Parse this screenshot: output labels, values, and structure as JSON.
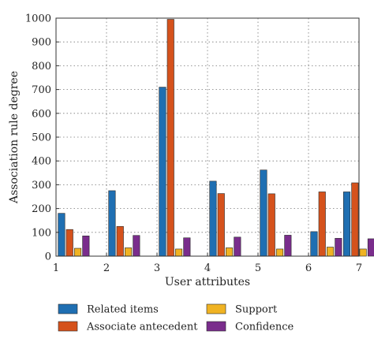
{
  "chart_data": {
    "type": "bar",
    "title": "",
    "xlabel": "User attributes",
    "ylabel": "Association rule degree",
    "categories": [
      1.35,
      2.35,
      3.35,
      4.35,
      5.35,
      6.35,
      7.0
    ],
    "x_ticks": [
      "1",
      "2",
      "3",
      "4",
      "5",
      "6",
      "7"
    ],
    "xlim": [
      1,
      7
    ],
    "ylim": [
      0,
      1000
    ],
    "y_ticks": [
      "0",
      "100",
      "200",
      "300",
      "400",
      "500",
      "600",
      "700",
      "800",
      "900",
      "1000"
    ],
    "grid": true,
    "legend_position": "bottom",
    "series": [
      {
        "name": "Related items",
        "color": "#1f6fb2",
        "values": [
          180,
          275,
          710,
          315,
          362,
          103,
          270
        ]
      },
      {
        "name": "Associate antecedent",
        "color": "#d5521c",
        "values": [
          112,
          125,
          995,
          263,
          262,
          270,
          308
        ]
      },
      {
        "name": "Support",
        "color": "#f0b323",
        "values": [
          33,
          35,
          30,
          35,
          30,
          38,
          30
        ]
      },
      {
        "name": "Confidence",
        "color": "#7a2d8c",
        "values": [
          85,
          87,
          77,
          80,
          88,
          75,
          73
        ]
      }
    ]
  }
}
